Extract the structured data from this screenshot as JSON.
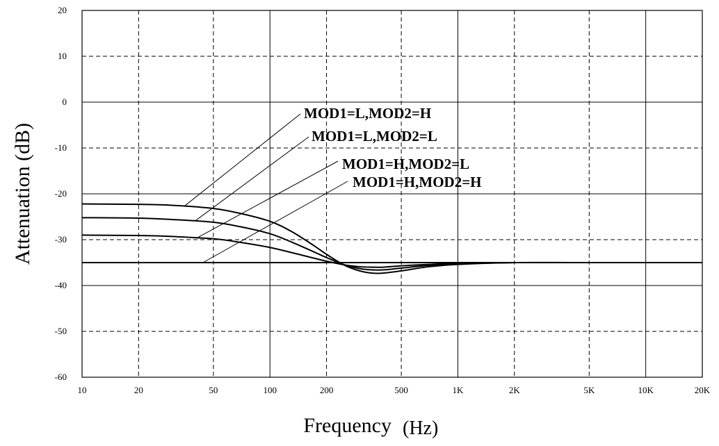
{
  "chart_data": {
    "type": "line",
    "title": "",
    "xlabel": "Frequency",
    "xlabel_unit": "(Hz)",
    "ylabel": "Attenuation (dB)",
    "x_scale": "log",
    "xlim": [
      10,
      20000
    ],
    "ylim": [
      -60,
      20
    ],
    "x_ticks": [
      {
        "value": 10,
        "label": "10"
      },
      {
        "value": 20,
        "label": "20"
      },
      {
        "value": 50,
        "label": "50"
      },
      {
        "value": 100,
        "label": "100"
      },
      {
        "value": 200,
        "label": "200"
      },
      {
        "value": 500,
        "label": "500"
      },
      {
        "value": 1000,
        "label": "1K"
      },
      {
        "value": 2000,
        "label": "2K"
      },
      {
        "value": 5000,
        "label": "5K"
      },
      {
        "value": 10000,
        "label": "10K"
      },
      {
        "value": 20000,
        "label": "20K"
      }
    ],
    "y_ticks": [
      {
        "value": 20,
        "label": "20"
      },
      {
        "value": 10,
        "label": "10"
      },
      {
        "value": 0,
        "label": "0"
      },
      {
        "value": -10,
        "label": "-10"
      },
      {
        "value": -20,
        "label": "-20"
      },
      {
        "value": -30,
        "label": "-30"
      },
      {
        "value": -40,
        "label": "-40"
      },
      {
        "value": -50,
        "label": "-50"
      },
      {
        "value": -60,
        "label": "-60"
      }
    ],
    "grid": true,
    "series": [
      {
        "name": "MOD1=L,MOD2=H",
        "x": [
          10,
          20,
          30,
          50,
          70,
          100,
          130,
          170,
          200,
          250,
          300,
          350,
          400,
          500,
          700,
          1000,
          2000,
          5000,
          20000
        ],
        "y": [
          -22.2,
          -22.3,
          -22.5,
          -23.2,
          -24.3,
          -26.0,
          -28.2,
          -31.2,
          -33.2,
          -35.6,
          -36.8,
          -37.3,
          -37.3,
          -36.8,
          -35.9,
          -35.4,
          -35.0,
          -35.0,
          -35.0
        ]
      },
      {
        "name": "MOD1=L,MOD2=L",
        "x": [
          10,
          20,
          30,
          50,
          70,
          100,
          130,
          170,
          200,
          250,
          300,
          350,
          400,
          500,
          700,
          1000,
          2000,
          5000,
          20000
        ],
        "y": [
          -25.2,
          -25.3,
          -25.6,
          -26.2,
          -27.2,
          -28.7,
          -30.5,
          -32.6,
          -33.9,
          -35.5,
          -36.3,
          -36.6,
          -36.6,
          -36.2,
          -35.6,
          -35.3,
          -35.0,
          -35.0,
          -35.0
        ]
      },
      {
        "name": "MOD1=H,MOD2=L",
        "x": [
          10,
          20,
          30,
          50,
          70,
          100,
          130,
          170,
          200,
          250,
          300,
          350,
          400,
          500,
          700,
          1000,
          2000,
          5000,
          20000
        ],
        "y": [
          -29.0,
          -29.1,
          -29.3,
          -29.8,
          -30.6,
          -31.7,
          -32.8,
          -34.0,
          -34.7,
          -35.5,
          -35.9,
          -36.0,
          -36.0,
          -35.7,
          -35.4,
          -35.2,
          -35.0,
          -35.0,
          -35.0
        ]
      },
      {
        "name": "MOD1=H,MOD2=H",
        "x": [
          10,
          20000
        ],
        "y": [
          -35.0,
          -35.0
        ]
      }
    ],
    "annotations": [
      {
        "text": "MOD1=L,MOD2=H",
        "series": 0,
        "point_x": 35,
        "point_y": -22.7
      },
      {
        "text": "MOD1=L,MOD2=L",
        "series": 1,
        "point_x": 40,
        "point_y": -25.9
      },
      {
        "text": "MOD1=H,MOD2=L",
        "series": 2,
        "point_x": 41,
        "point_y": -29.6
      },
      {
        "text": "MOD1=H,MOD2=H",
        "series": 3,
        "point_x": 44,
        "point_y": -35.0
      }
    ]
  }
}
